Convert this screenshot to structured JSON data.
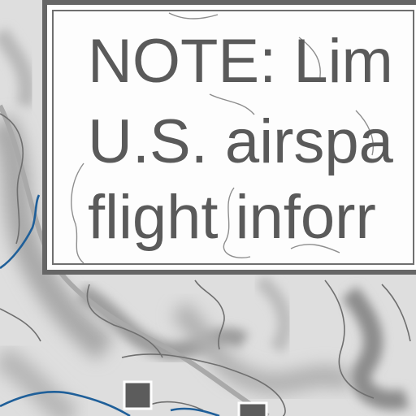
{
  "note": {
    "lines": [
      "NOTE: Lim",
      "U.S. airspa",
      "flight inforr"
    ]
  },
  "map_style": {
    "background": "#d9d9d9",
    "terrain_dark": "#9a9a9a",
    "contour": "#707070",
    "river": "#1f5f99",
    "road": "#a8a8a8",
    "marker": "#5c5c5c",
    "note_border": "#666666",
    "note_text": "#5a5a5a"
  }
}
